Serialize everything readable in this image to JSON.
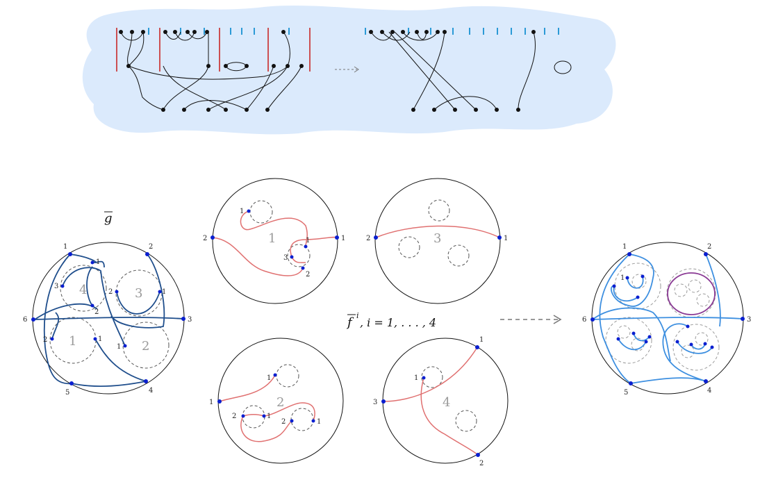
{
  "top_diagram": {
    "arrow": "dashed-arrow-right"
  },
  "gbar": {
    "symbol": "g",
    "boundary_labels": [
      "1",
      "2",
      "3",
      "4",
      "5",
      "6"
    ],
    "region_numbers": [
      "4",
      "3",
      "1",
      "2"
    ],
    "inner_labels": [
      "1",
      "3",
      "2",
      "2",
      "1",
      "2",
      "1",
      "1"
    ]
  },
  "fbar": {
    "caption_symbol": "f",
    "caption_superscript": "i",
    "caption_rest": ",  i = 1, . . . , 4",
    "disk1": {
      "region": "1",
      "labels": [
        "1",
        "2",
        "1",
        "1",
        "3",
        "2"
      ]
    },
    "disk3": {
      "region": "3",
      "labels": [
        "2",
        "1"
      ]
    },
    "disk2": {
      "region": "2",
      "labels": [
        "1",
        "1",
        "2",
        "1",
        "2",
        "1"
      ]
    },
    "disk4": {
      "region": "4",
      "labels": [
        "1",
        "3",
        "1",
        "2"
      ]
    }
  },
  "result": {
    "boundary_labels": [
      "1",
      "2",
      "3",
      "4",
      "5",
      "6"
    ],
    "inner_labels": [
      "1"
    ]
  },
  "colors": {
    "cloud": "#dbeafc",
    "dark_blue": "#1f4e8c",
    "light_blue": "#3d8fe0",
    "red": "#e07070",
    "purple": "#8a3a94",
    "tick_blue": "#2b9ad6",
    "bar_red": "#c82828",
    "dot": "#0a1fd0"
  }
}
